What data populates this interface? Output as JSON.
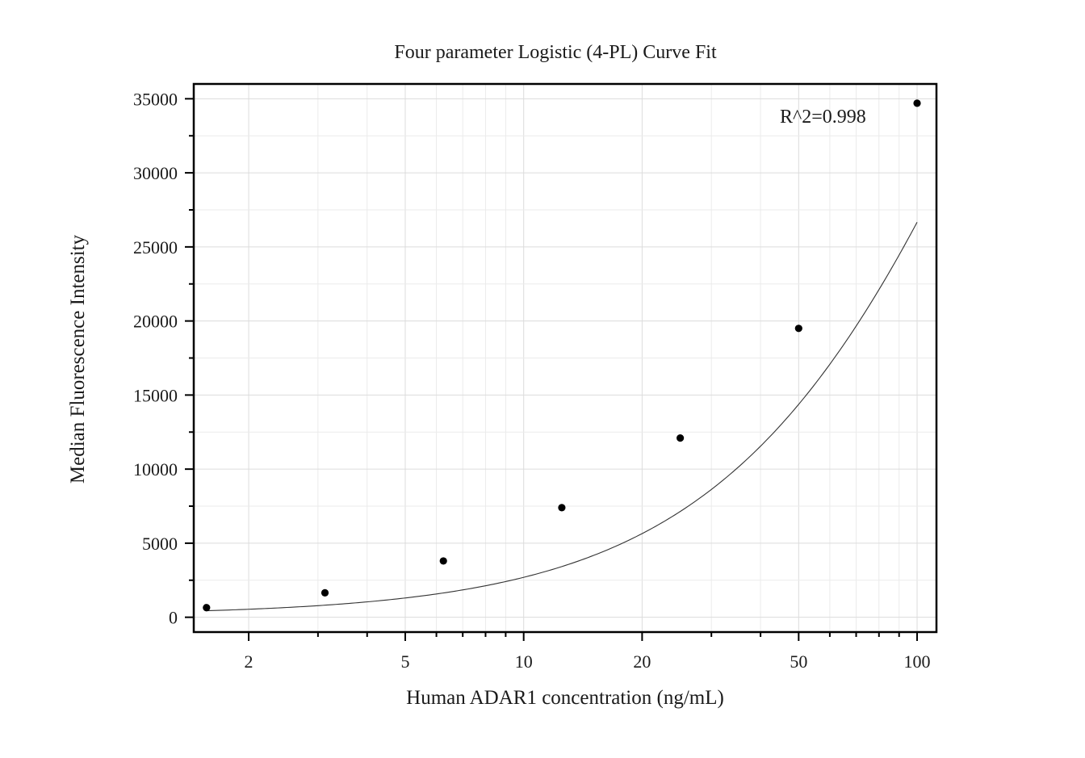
{
  "chart_data": {
    "type": "scatter",
    "title": "Four parameter Logistic (4-PL) Curve Fit",
    "xlabel": "Human ADAR1 concentration (ng/mL)",
    "ylabel": "Median Fluorescence Intensity",
    "x_scale": "log",
    "xlim": [
      1.45,
      112
    ],
    "ylim": [
      -1000,
      36000
    ],
    "x_ticks": [
      2,
      5,
      10,
      20,
      50,
      100
    ],
    "y_ticks": [
      0,
      5000,
      10000,
      15000,
      20000,
      25000,
      30000,
      35000
    ],
    "grid": true,
    "legend": "none",
    "annotation": "R^2=0.998",
    "series": [
      {
        "kind": "points",
        "x": [
          1.5625,
          3.125,
          6.25,
          12.5,
          25,
          50,
          100
        ],
        "y": [
          650,
          1650,
          3800,
          7400,
          12100,
          19500,
          34700
        ]
      },
      {
        "kind": "fit-curve",
        "model": "4PL",
        "params": {
          "bottom": 130,
          "top": 90000,
          "ec50": 212.5,
          "hill": 1.154
        }
      }
    ]
  }
}
